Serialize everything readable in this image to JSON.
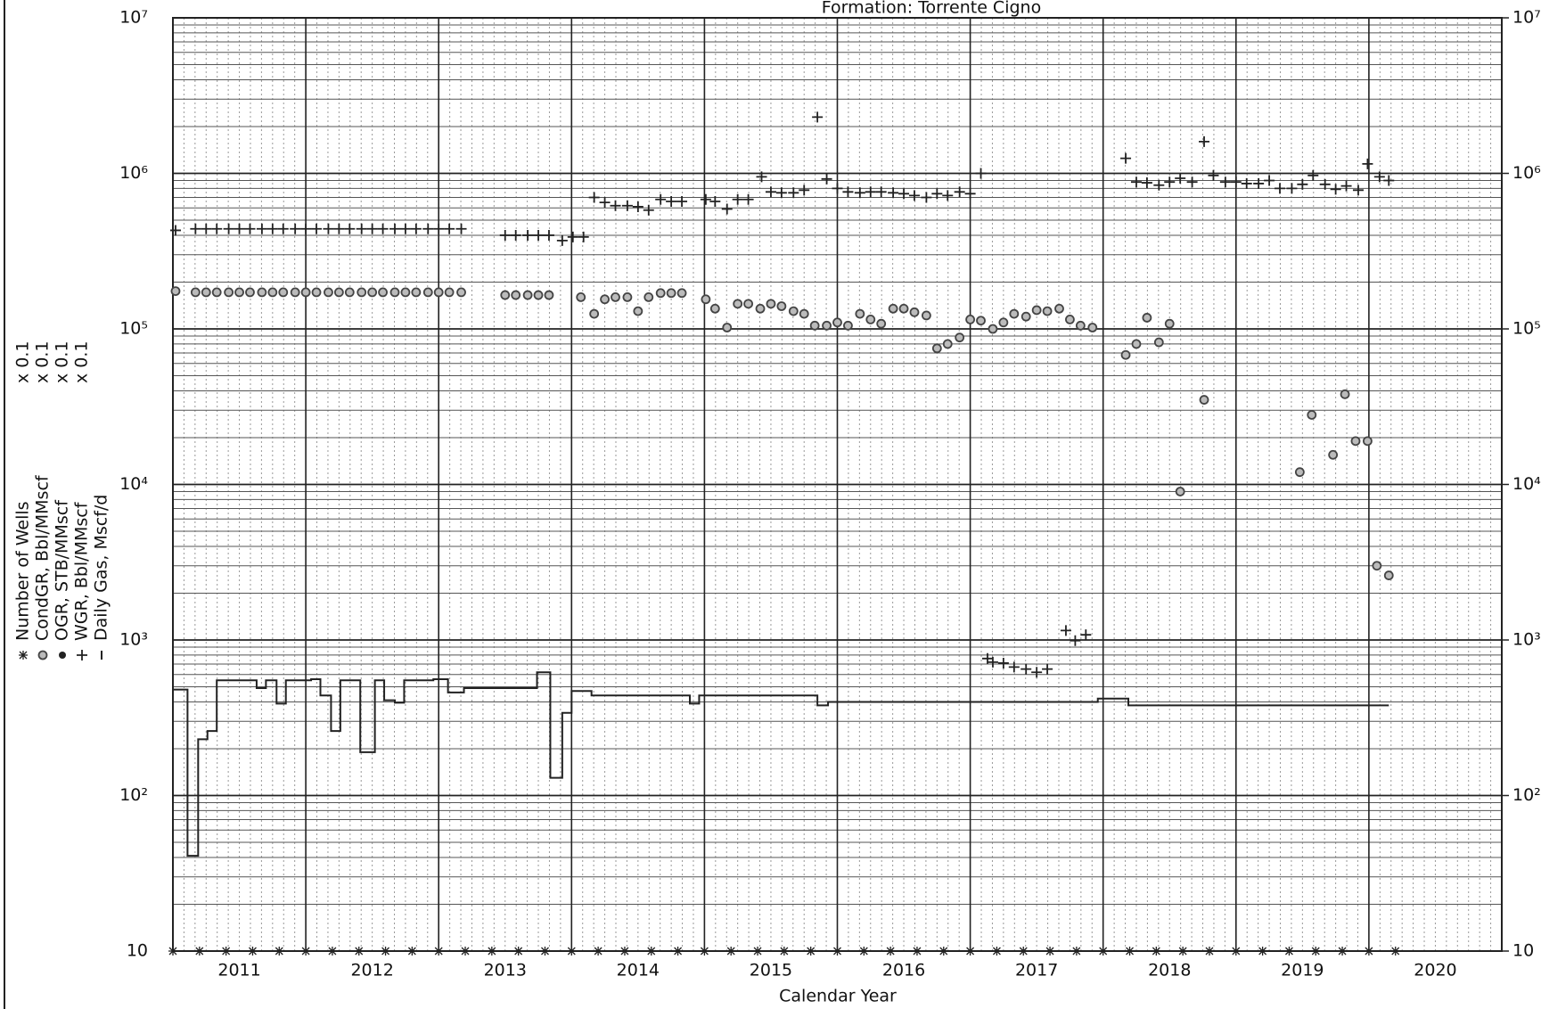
{
  "chart_data": {
    "type": "scatter",
    "title": "Formation: Torrente Cigno",
    "xlabel": "Calendar Year",
    "log_y": true,
    "grid": true,
    "xlim": [
      2011,
      2021
    ],
    "xticks": [
      {
        "value": 2011.5,
        "label": "2011"
      },
      {
        "value": 2012.5,
        "label": "2012"
      },
      {
        "value": 2013.5,
        "label": "2013"
      },
      {
        "value": 2014.5,
        "label": "2014"
      },
      {
        "value": 2015.5,
        "label": "2015"
      },
      {
        "value": 2016.5,
        "label": "2016"
      },
      {
        "value": 2017.5,
        "label": "2017"
      },
      {
        "value": 2018.5,
        "label": "2018"
      },
      {
        "value": 2019.5,
        "label": "2019"
      },
      {
        "value": 2020.5,
        "label": "2020"
      }
    ],
    "xgrid": [
      2011,
      2012,
      2013,
      2014,
      2015,
      2016,
      2017,
      2018,
      2019,
      2020,
      2021
    ],
    "ylim": [
      10,
      10000000
    ],
    "yticks": [
      10,
      {
        "value": 100,
        "label": "10²"
      },
      {
        "value": 1000,
        "label": "10³"
      },
      {
        "value": 10000,
        "label": "10⁴"
      },
      {
        "value": 100000,
        "label": "10⁵"
      },
      {
        "value": 1000000,
        "label": "10⁶"
      },
      {
        "value": 10000000,
        "label": "10⁷"
      }
    ],
    "y2lim": [
      10,
      10000000
    ],
    "y2ticks": [
      10,
      {
        "value": 100,
        "label": "10²"
      },
      {
        "value": 1000,
        "label": "10³"
      },
      {
        "value": 10000,
        "label": "10⁴"
      },
      {
        "value": 100000,
        "label": "10⁵"
      },
      {
        "value": 1000000,
        "label": "10⁶"
      },
      {
        "value": 10000000,
        "label": "10⁷"
      }
    ],
    "series": [
      {
        "name": "Number of Wells",
        "scale_label": "x 0.1",
        "marker": "asterisk",
        "color": "#222",
        "x": [
          2011.0,
          2011.2,
          2011.4,
          2011.6,
          2011.8,
          2012.0,
          2012.2,
          2012.4,
          2012.6,
          2012.8,
          2013.0,
          2013.2,
          2013.4,
          2013.6,
          2013.8,
          2014.0,
          2014.2,
          2014.4,
          2014.6,
          2014.8,
          2015.0,
          2015.2,
          2015.4,
          2015.6,
          2015.8,
          2016.0,
          2016.2,
          2016.4,
          2016.6,
          2016.8,
          2017.0,
          2017.2,
          2017.4,
          2017.6,
          2017.8,
          2018.0,
          2018.2,
          2018.4,
          2018.6,
          2018.8,
          2019.0,
          2019.2,
          2019.4,
          2019.6,
          2019.8,
          2020.0,
          2020.2
        ],
        "values": [
          10,
          10,
          10,
          10,
          10,
          10,
          10,
          10,
          10,
          10,
          10,
          10,
          10,
          10,
          10,
          10,
          10,
          10,
          10,
          10,
          10,
          10,
          10,
          10,
          10,
          10,
          10,
          10,
          10,
          10,
          10,
          10,
          10,
          10,
          10,
          10,
          10,
          10,
          10,
          10,
          10,
          10,
          10,
          10,
          10,
          10,
          10
        ]
      },
      {
        "name": "CondGR, Bbl/MMscf",
        "scale_label": "x 0.1",
        "marker": "circle",
        "color": "#444",
        "x": [
          2011.02,
          2011.17,
          2011.25,
          2011.33,
          2011.42,
          2011.5,
          2011.58,
          2011.67,
          2011.75,
          2011.83,
          2011.92,
          2012.0,
          2012.08,
          2012.17,
          2012.25,
          2012.33,
          2012.42,
          2012.5,
          2012.58,
          2012.67,
          2012.75,
          2012.83,
          2012.92,
          2013.0,
          2013.08,
          2013.17,
          2013.5,
          2013.58,
          2013.67,
          2013.75,
          2013.83,
          2014.07,
          2014.17,
          2014.25,
          2014.33,
          2014.42,
          2014.5,
          2014.58,
          2014.67,
          2014.75,
          2014.83,
          2015.01,
          2015.08,
          2015.17,
          2015.25,
          2015.33,
          2015.42,
          2015.5,
          2015.58,
          2015.67,
          2015.75,
          2015.83,
          2015.92,
          2016.0,
          2016.08,
          2016.17,
          2016.25,
          2016.33,
          2016.42,
          2016.5,
          2016.58,
          2016.67,
          2016.75,
          2016.83,
          2016.92,
          2017.0,
          2017.08,
          2017.17,
          2017.25,
          2017.33,
          2017.42,
          2017.5,
          2017.58,
          2017.67,
          2017.75,
          2017.83,
          2017.92,
          2018.17,
          2018.25,
          2018.33,
          2018.42,
          2018.5,
          2018.58,
          2018.76,
          2019.48,
          2019.57,
          2019.73,
          2019.82,
          2019.9,
          2019.99,
          2020.06,
          2020.15
        ],
        "values": [
          175000,
          172000,
          172000,
          172000,
          172000,
          172000,
          172000,
          172000,
          172000,
          172000,
          172000,
          172000,
          172000,
          172000,
          172000,
          172000,
          172000,
          172000,
          172000,
          172000,
          172000,
          172000,
          172000,
          172000,
          172000,
          172000,
          165000,
          165000,
          165000,
          165000,
          165000,
          160000,
          125000,
          155000,
          160000,
          160000,
          130000,
          160000,
          170000,
          170000,
          170000,
          155000,
          135000,
          102000,
          145000,
          145000,
          135000,
          145000,
          140000,
          130000,
          125000,
          105000,
          105000,
          110000,
          105000,
          125000,
          115000,
          108000,
          135000,
          135000,
          128000,
          122000,
          75000,
          80000,
          88000,
          115000,
          113000,
          100000,
          110000,
          125000,
          120000,
          132000,
          130000,
          135000,
          115000,
          105000,
          102000,
          68000,
          80000,
          118000,
          82000,
          108000,
          9000,
          35000,
          12000,
          28000,
          15500,
          38000,
          19000,
          19000,
          3000,
          2600
        ]
      },
      {
        "name": "OGR, STB/MMscf",
        "scale_label": "x 0.1",
        "marker": "dot",
        "color": "#222",
        "x": [],
        "values": []
      },
      {
        "name": "WGR, Bbl/MMscf",
        "scale_label": "x 0.1",
        "marker": "plus",
        "color": "#222",
        "x": [
          2011.02,
          2011.17,
          2011.25,
          2011.33,
          2011.42,
          2011.5,
          2011.58,
          2011.67,
          2011.75,
          2011.83,
          2011.92,
          2012.0,
          2012.08,
          2012.17,
          2012.25,
          2012.33,
          2012.42,
          2012.5,
          2012.58,
          2012.67,
          2012.75,
          2012.83,
          2012.92,
          2013.0,
          2013.08,
          2013.17,
          2013.5,
          2013.58,
          2013.67,
          2013.75,
          2013.83,
          2013.93,
          2014.01,
          2014.09,
          2014.17,
          2014.25,
          2014.33,
          2014.42,
          2014.5,
          2014.58,
          2014.67,
          2014.75,
          2014.83,
          2015.01,
          2015.08,
          2015.17,
          2015.25,
          2015.33,
          2015.43,
          2015.5,
          2015.58,
          2015.67,
          2015.75,
          2015.85,
          2015.92,
          2016.0,
          2016.08,
          2016.17,
          2016.25,
          2016.33,
          2016.42,
          2016.5,
          2016.58,
          2016.67,
          2016.75,
          2016.83,
          2016.92,
          2017.0,
          2017.08,
          2017.13,
          2017.17,
          2017.25,
          2017.33,
          2017.42,
          2017.5,
          2017.58,
          2017.72,
          2017.79,
          2017.87,
          2018.17,
          2018.25,
          2018.33,
          2018.42,
          2018.5,
          2018.58,
          2018.67,
          2018.76,
          2018.83,
          2018.92,
          2019.0,
          2019.08,
          2019.17,
          2019.25,
          2019.33,
          2019.42,
          2019.5,
          2019.58,
          2019.67,
          2019.75,
          2019.83,
          2019.92,
          2019.99,
          2020.08,
          2020.15
        ],
        "values": [
          430000,
          440000,
          440000,
          440000,
          440000,
          440000,
          440000,
          440000,
          440000,
          440000,
          440000,
          440000,
          440000,
          440000,
          440000,
          440000,
          440000,
          440000,
          440000,
          440000,
          440000,
          440000,
          440000,
          440000,
          440000,
          440000,
          400000,
          400000,
          400000,
          400000,
          400000,
          370000,
          390000,
          390000,
          700000,
          650000,
          620000,
          620000,
          610000,
          580000,
          680000,
          660000,
          660000,
          680000,
          660000,
          590000,
          680000,
          680000,
          950000,
          760000,
          750000,
          750000,
          780000,
          2300000,
          920000,
          800000,
          760000,
          750000,
          760000,
          760000,
          750000,
          740000,
          720000,
          700000,
          740000,
          720000,
          760000,
          740000,
          1000000,
          760,
          720,
          710,
          670,
          650,
          620,
          650,
          1150,
          990,
          1080,
          1250000,
          880000,
          870000,
          840000,
          880000,
          930000,
          880000,
          1600000,
          970000,
          880000,
          880000,
          860000,
          860000,
          900000,
          800000,
          800000,
          850000,
          970000,
          850000,
          790000,
          830000,
          780000,
          1150000,
          950000,
          900000
        ]
      },
      {
        "name": "Daily Gas, Mscf/d",
        "marker": "step",
        "color": "#222",
        "x": [
          2011.0,
          2011.11,
          2011.19,
          2011.26,
          2011.33,
          2011.63,
          2011.7,
          2011.78,
          2011.85,
          2012.04,
          2012.11,
          2012.19,
          2012.26,
          2012.41,
          2012.52,
          2012.59,
          2012.67,
          2012.74,
          2012.96,
          2013.07,
          2013.19,
          2013.74,
          2013.84,
          2013.93,
          2014.0,
          2014.15,
          2014.89,
          2014.96,
          2015.85,
          2015.93,
          2017.96,
          2018.19,
          2020.15
        ],
        "values": [
          480,
          41,
          230,
          260,
          550,
          490,
          550,
          390,
          550,
          560,
          440,
          260,
          550,
          190,
          550,
          410,
          395,
          550,
          560,
          460,
          490,
          620,
          130,
          340,
          470,
          440,
          390,
          440,
          380,
          400,
          420,
          380,
          380
        ]
      }
    ]
  }
}
